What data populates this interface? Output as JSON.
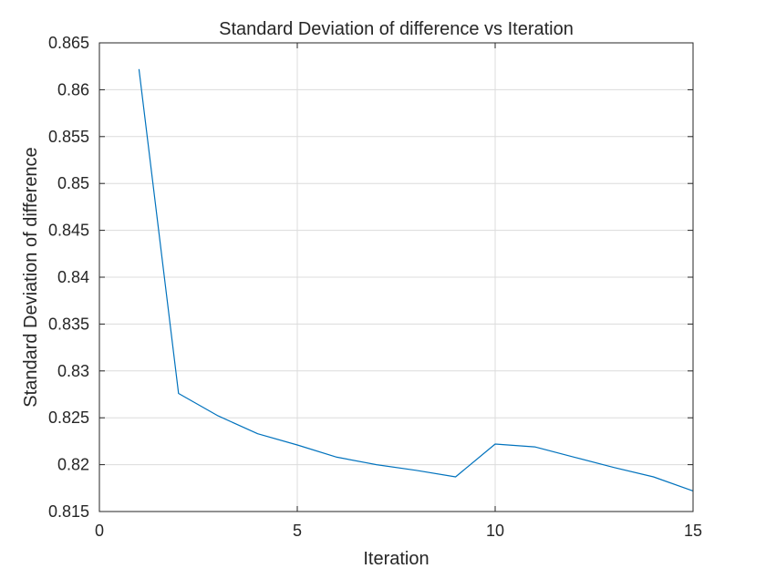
{
  "chart_data": {
    "type": "line",
    "title": "Standard Deviation of difference vs Iteration",
    "xlabel": "Iteration",
    "ylabel": "Standard Deviation of difference",
    "xlim": [
      0,
      15
    ],
    "ylim": [
      0.815,
      0.865
    ],
    "xticks": [
      0,
      5,
      10,
      15
    ],
    "yticks": [
      0.815,
      0.82,
      0.825,
      0.83,
      0.835,
      0.84,
      0.845,
      0.85,
      0.855,
      0.86,
      0.865
    ],
    "ytick_labels": [
      "0.815",
      "0.82",
      "0.825",
      "0.83",
      "0.835",
      "0.84",
      "0.845",
      "0.85",
      "0.855",
      "0.86",
      "0.865"
    ],
    "grid": true,
    "series": [
      {
        "color": "#0072BD",
        "x": [
          1,
          2,
          3,
          4,
          5,
          6,
          7,
          8,
          9,
          10,
          11,
          12,
          13,
          14,
          15
        ],
        "y": [
          0.8622,
          0.8276,
          0.8252,
          0.8233,
          0.8221,
          0.8208,
          0.82,
          0.8194,
          0.8187,
          0.8222,
          0.8219,
          0.8208,
          0.8197,
          0.8187,
          0.8172
        ]
      }
    ]
  }
}
